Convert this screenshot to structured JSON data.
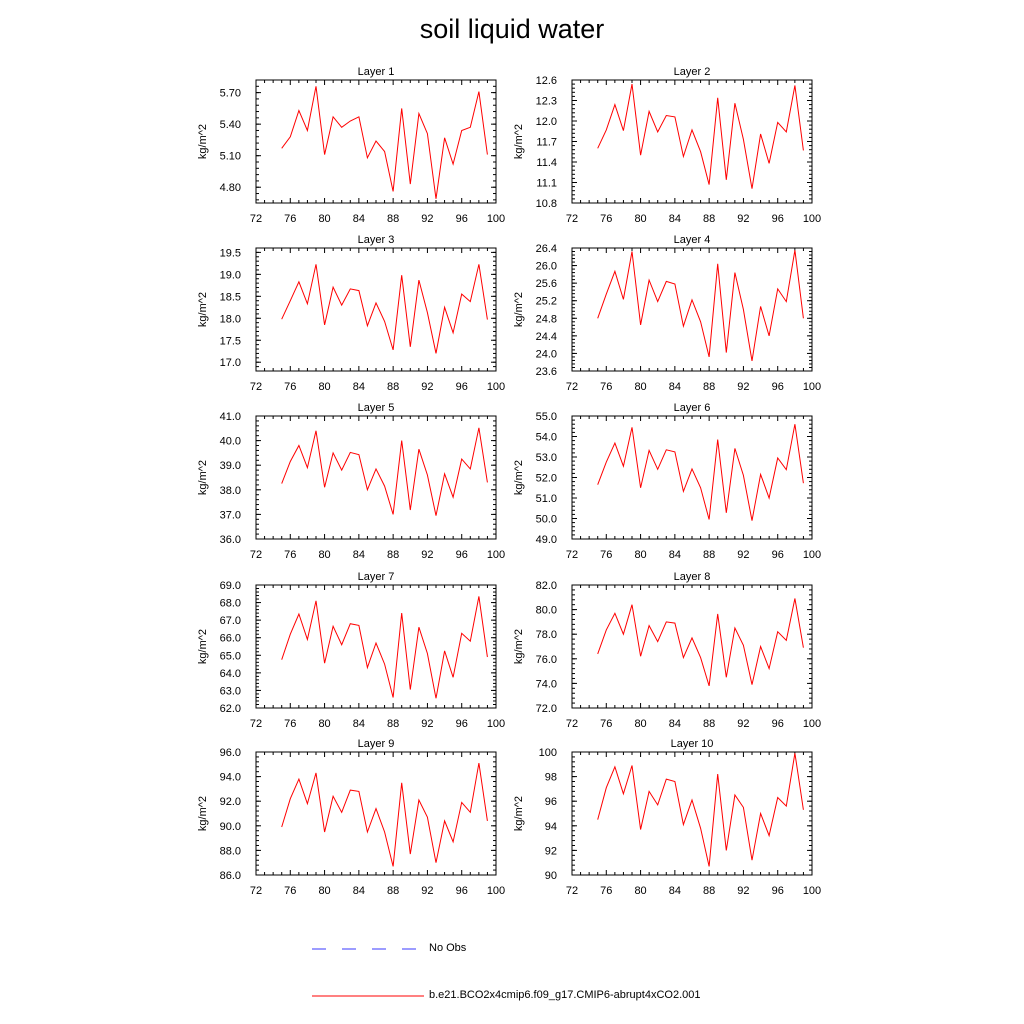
{
  "title": "soil liquid water",
  "legend": {
    "obs_label": "No Obs",
    "obs_color": "#3a3aff",
    "model_label": "b.e21.BCO2x4cmip6.f09_g17.CMIP6-abrupt4xCO2.001",
    "model_color": "#ff0000"
  },
  "chart_data": [
    {
      "type": "line",
      "title": "Layer 1",
      "ylabel": "kg/m^2",
      "xlim": [
        72,
        100
      ],
      "xticks": [
        "72",
        "76",
        "80",
        "84",
        "88",
        "92",
        "96",
        "100"
      ],
      "ylim": [
        4.65,
        5.82
      ],
      "yticks": [
        "4.80",
        "5.10",
        "5.40",
        "5.70"
      ],
      "series": [
        {
          "x": [
            75,
            76,
            77,
            78,
            79,
            80,
            81,
            82,
            83,
            84,
            85,
            86,
            87,
            88,
            89,
            90,
            91,
            92,
            93,
            94,
            95,
            96,
            97,
            98,
            99
          ],
          "y": [
            5.17,
            5.28,
            5.53,
            5.34,
            5.76,
            5.11,
            5.47,
            5.37,
            5.43,
            5.47,
            5.08,
            5.24,
            5.14,
            4.76,
            5.55,
            4.83,
            5.5,
            5.31,
            4.69,
            5.27,
            5.02,
            5.34,
            5.37,
            5.71,
            5.11
          ]
        }
      ]
    },
    {
      "type": "line",
      "title": "Layer 2",
      "ylabel": "kg/m^2",
      "xlim": [
        72,
        100
      ],
      "xticks": [
        "72",
        "76",
        "80",
        "84",
        "88",
        "92",
        "96",
        "100"
      ],
      "ylim": [
        10.8,
        12.6
      ],
      "yticks": [
        "10.8",
        "11.1",
        "11.4",
        "11.7",
        "12.0",
        "12.3",
        "12.6"
      ],
      "series": [
        {
          "x": [
            75,
            76,
            77,
            78,
            79,
            80,
            81,
            82,
            83,
            84,
            85,
            86,
            87,
            88,
            89,
            90,
            91,
            92,
            93,
            94,
            95,
            96,
            97,
            98,
            99
          ],
          "y": [
            11.6,
            11.87,
            12.24,
            11.86,
            12.54,
            11.5,
            12.14,
            11.84,
            12.08,
            12.06,
            11.48,
            11.87,
            11.55,
            11.07,
            12.34,
            11.14,
            12.26,
            11.73,
            11.01,
            11.81,
            11.38,
            11.98,
            11.84,
            12.52,
            11.57
          ]
        }
      ]
    },
    {
      "type": "line",
      "title": "Layer 3",
      "ylabel": "kg/m^2",
      "xlim": [
        72,
        100
      ],
      "xticks": [
        "72",
        "76",
        "80",
        "84",
        "88",
        "92",
        "96",
        "100"
      ],
      "ylim": [
        16.8,
        19.6
      ],
      "yticks": [
        "17.0",
        "17.5",
        "18.0",
        "18.5",
        "19.0",
        "19.5"
      ],
      "series": [
        {
          "x": [
            75,
            76,
            77,
            78,
            79,
            80,
            81,
            82,
            83,
            84,
            85,
            86,
            87,
            88,
            89,
            90,
            91,
            92,
            93,
            94,
            95,
            96,
            97,
            98,
            99
          ],
          "y": [
            17.98,
            18.4,
            18.83,
            18.33,
            19.23,
            17.85,
            18.71,
            18.3,
            18.67,
            18.63,
            17.83,
            18.35,
            17.93,
            17.28,
            18.98,
            17.35,
            18.87,
            18.13,
            17.2,
            18.25,
            17.67,
            18.55,
            18.38,
            19.23,
            17.97
          ]
        }
      ]
    },
    {
      "type": "line",
      "title": "Layer 4",
      "ylabel": "kg/m^2",
      "xlim": [
        72,
        100
      ],
      "xticks": [
        "72",
        "76",
        "80",
        "84",
        "88",
        "92",
        "96",
        "100"
      ],
      "ylim": [
        23.6,
        26.4
      ],
      "yticks": [
        "23.6",
        "24.0",
        "24.4",
        "24.8",
        "25.2",
        "25.6",
        "26.0",
        "26.4"
      ],
      "series": [
        {
          "x": [
            75,
            76,
            77,
            78,
            79,
            80,
            81,
            82,
            83,
            84,
            85,
            86,
            87,
            88,
            89,
            90,
            91,
            92,
            93,
            94,
            95,
            96,
            97,
            98,
            99
          ],
          "y": [
            24.8,
            25.35,
            25.87,
            25.23,
            26.32,
            24.65,
            25.67,
            25.18,
            25.64,
            25.58,
            24.62,
            25.22,
            24.72,
            23.92,
            26.04,
            24.02,
            25.84,
            25.0,
            23.83,
            25.07,
            24.4,
            25.47,
            25.18,
            26.35,
            24.8
          ]
        }
      ]
    },
    {
      "type": "line",
      "title": "Layer 5",
      "ylabel": "kg/m^2",
      "xlim": [
        72,
        100
      ],
      "xticks": [
        "72",
        "76",
        "80",
        "84",
        "88",
        "92",
        "96",
        "100"
      ],
      "ylim": [
        36.0,
        41.0
      ],
      "yticks": [
        "36.0",
        "37.0",
        "38.0",
        "39.0",
        "40.0",
        "41.0"
      ],
      "series": [
        {
          "x": [
            75,
            76,
            77,
            78,
            79,
            80,
            81,
            82,
            83,
            84,
            85,
            86,
            87,
            88,
            89,
            90,
            91,
            92,
            93,
            94,
            95,
            96,
            97,
            98,
            99
          ],
          "y": [
            38.25,
            39.15,
            39.8,
            38.9,
            40.4,
            38.1,
            39.5,
            38.8,
            39.52,
            39.43,
            38.0,
            38.85,
            38.15,
            37.0,
            40.0,
            37.18,
            39.65,
            38.6,
            36.95,
            38.65,
            37.7,
            39.25,
            38.85,
            40.52,
            38.3
          ]
        }
      ]
    },
    {
      "type": "line",
      "title": "Layer 6",
      "ylabel": "kg/m^2",
      "xlim": [
        72,
        100
      ],
      "xticks": [
        "72",
        "76",
        "80",
        "84",
        "88",
        "92",
        "96",
        "100"
      ],
      "ylim": [
        49.0,
        55.0
      ],
      "yticks": [
        "49.0",
        "50.0",
        "51.0",
        "52.0",
        "53.0",
        "54.0",
        "55.0"
      ],
      "series": [
        {
          "x": [
            75,
            76,
            77,
            78,
            79,
            80,
            81,
            82,
            83,
            84,
            85,
            86,
            87,
            88,
            89,
            90,
            91,
            92,
            93,
            94,
            95,
            96,
            97,
            98,
            99
          ],
          "y": [
            51.65,
            52.75,
            53.68,
            52.55,
            54.45,
            51.5,
            53.32,
            52.4,
            53.35,
            53.25,
            51.32,
            52.42,
            51.5,
            49.95,
            53.85,
            50.28,
            53.42,
            52.1,
            49.9,
            52.15,
            51.0,
            52.95,
            52.38,
            54.6,
            51.72
          ]
        }
      ]
    },
    {
      "type": "line",
      "title": "Layer 7",
      "ylabel": "kg/m^2",
      "xlim": [
        72,
        100
      ],
      "xticks": [
        "72",
        "76",
        "80",
        "84",
        "88",
        "92",
        "96",
        "100"
      ],
      "ylim": [
        62.0,
        69.0
      ],
      "yticks": [
        "62.0",
        "63.0",
        "64.0",
        "65.0",
        "66.0",
        "67.0",
        "68.0",
        "69.0"
      ],
      "series": [
        {
          "x": [
            75,
            76,
            77,
            78,
            79,
            80,
            81,
            82,
            83,
            84,
            85,
            86,
            87,
            88,
            89,
            90,
            91,
            92,
            93,
            94,
            95,
            96,
            97,
            98,
            99
          ],
          "y": [
            64.75,
            66.2,
            67.35,
            65.9,
            68.1,
            64.55,
            66.65,
            65.6,
            66.8,
            66.7,
            64.3,
            65.7,
            64.5,
            62.6,
            67.4,
            63.05,
            66.6,
            65.1,
            62.55,
            65.25,
            63.75,
            66.25,
            65.8,
            68.35,
            64.9
          ]
        }
      ]
    },
    {
      "type": "line",
      "title": "Layer 8",
      "ylabel": "kg/m^2",
      "xlim": [
        72,
        100
      ],
      "xticks": [
        "72",
        "76",
        "80",
        "84",
        "88",
        "92",
        "96",
        "100"
      ],
      "ylim": [
        72.0,
        82.0
      ],
      "yticks": [
        "72.0",
        "74.0",
        "76.0",
        "78.0",
        "80.0",
        "82.0"
      ],
      "series": [
        {
          "x": [
            75,
            76,
            77,
            78,
            79,
            80,
            81,
            82,
            83,
            84,
            85,
            86,
            87,
            88,
            89,
            90,
            91,
            92,
            93,
            94,
            95,
            96,
            97,
            98,
            99
          ],
          "y": [
            76.4,
            78.35,
            79.7,
            78.0,
            80.4,
            76.2,
            78.7,
            77.4,
            79.0,
            78.9,
            76.1,
            77.7,
            76.1,
            73.8,
            79.65,
            74.5,
            78.5,
            77.1,
            73.9,
            77.0,
            75.2,
            78.2,
            77.5,
            80.9,
            76.9
          ]
        }
      ]
    },
    {
      "type": "line",
      "title": "Layer 9",
      "ylabel": "kg/m^2",
      "xlim": [
        72,
        100
      ],
      "xticks": [
        "72",
        "76",
        "80",
        "84",
        "88",
        "92",
        "96",
        "100"
      ],
      "ylim": [
        86.0,
        96.0
      ],
      "yticks": [
        "86.0",
        "88.0",
        "90.0",
        "92.0",
        "94.0",
        "96.0"
      ],
      "series": [
        {
          "x": [
            75,
            76,
            77,
            78,
            79,
            80,
            81,
            82,
            83,
            84,
            85,
            86,
            87,
            88,
            89,
            90,
            91,
            92,
            93,
            94,
            95,
            96,
            97,
            98,
            99
          ],
          "y": [
            89.9,
            92.2,
            93.8,
            91.8,
            94.3,
            89.5,
            92.4,
            91.1,
            92.9,
            92.8,
            89.5,
            91.4,
            89.5,
            86.7,
            93.5,
            87.7,
            92.1,
            90.7,
            87.0,
            90.4,
            88.7,
            91.9,
            91.1,
            95.1,
            90.4
          ]
        }
      ]
    },
    {
      "type": "line",
      "title": "Layer 10",
      "ylabel": "kg/m^2",
      "xlim": [
        72,
        100
      ],
      "xticks": [
        "72",
        "76",
        "80",
        "84",
        "88",
        "92",
        "96",
        "100"
      ],
      "ylim": [
        90,
        100
      ],
      "yticks": [
        "90",
        "92",
        "94",
        "96",
        "98",
        "100"
      ],
      "series": [
        {
          "x": [
            75,
            76,
            77,
            78,
            79,
            80,
            81,
            82,
            83,
            84,
            85,
            86,
            87,
            88,
            89,
            90,
            91,
            92,
            93,
            94,
            95,
            96,
            97,
            98,
            99
          ],
          "y": [
            94.5,
            97.1,
            98.8,
            96.6,
            98.9,
            93.7,
            96.8,
            95.7,
            97.8,
            97.6,
            94.1,
            96.1,
            93.8,
            90.7,
            98.2,
            92.0,
            96.5,
            95.5,
            91.2,
            95.0,
            93.2,
            96.3,
            95.6,
            99.9,
            95.3
          ]
        }
      ]
    }
  ]
}
